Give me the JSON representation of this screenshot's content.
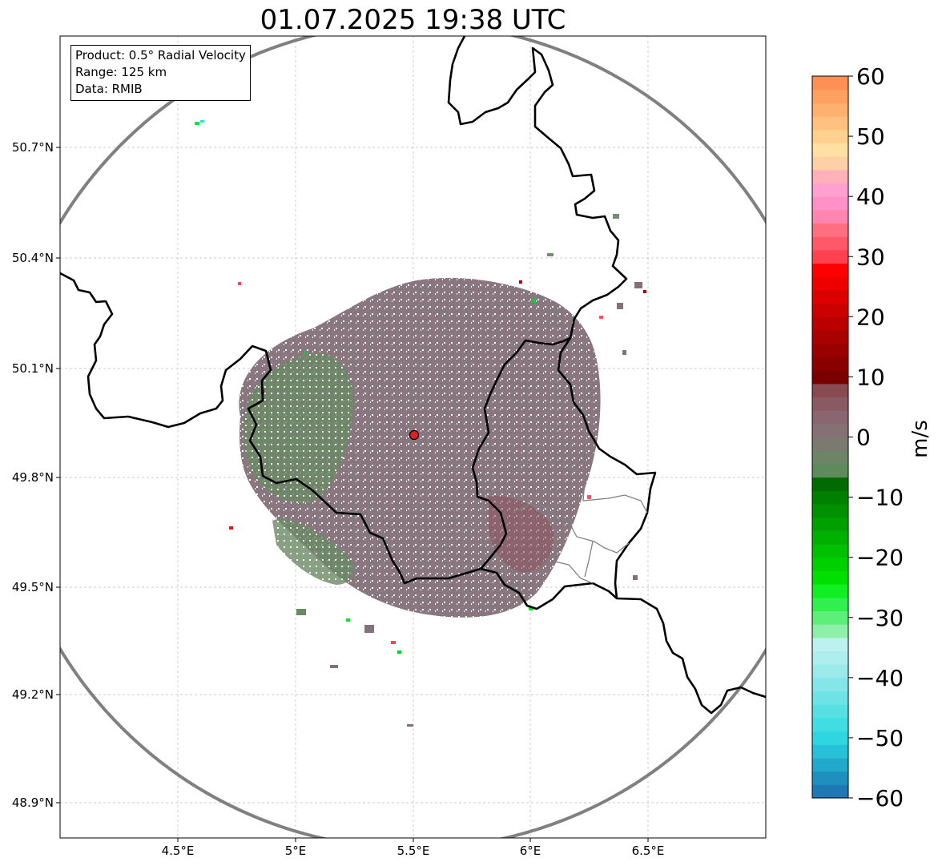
{
  "title": "01.07.2025 19:38 UTC",
  "info": {
    "product": "Product: 0.5° Radial Velocity",
    "range": "Range: 125 km",
    "data": "Data: RMIB"
  },
  "map": {
    "lon_ticks": [
      "4.5°E",
      "5°E",
      "5.5°E",
      "6°E",
      "6.5°E"
    ],
    "lat_ticks": [
      "50.7°N",
      "50.4°N",
      "50.1°N",
      "49.8°N",
      "49.5°N",
      "49.2°N",
      "48.9°N"
    ],
    "radar_site": {
      "lon": 5.5,
      "lat": 49.91
    },
    "range_ring_color": "#808080",
    "border_color": "#000000"
  },
  "colorbar": {
    "label": "m/s",
    "min": -60,
    "max": 60,
    "ticks": [
      "60",
      "50",
      "40",
      "30",
      "20",
      "10",
      "0",
      "−10",
      "−20",
      "−30",
      "−40",
      "−50",
      "−60"
    ],
    "colors": [
      "#1f77b4",
      "#1f8fc0",
      "#22a8cc",
      "#26c0d8",
      "#2dd6e0",
      "#40dde2",
      "#57e0e3",
      "#6ee3e6",
      "#84e6e8",
      "#9aeaea",
      "#aeeeef",
      "#bdf1f0",
      "#8ef0a8",
      "#5cf07a",
      "#30f050",
      "#10f020",
      "#00e000",
      "#00d000",
      "#00c000",
      "#00b000",
      "#00a000",
      "#009000",
      "#008000",
      "#006b00",
      "#5e8a5c",
      "#6b8566",
      "#7a7a70",
      "#857074",
      "#8a6670",
      "#8a5a62",
      "#8a4a52",
      "#7a0000",
      "#8a0000",
      "#9a0000",
      "#aa0000",
      "#bb0000",
      "#cc0000",
      "#dd0000",
      "#ee0000",
      "#ff0000",
      "#ff4050",
      "#ff5868",
      "#ff6f80",
      "#ff85b0",
      "#ff90c8",
      "#ffa0d0",
      "#ffb0b8",
      "#ffd0a8",
      "#ffe0a0",
      "#ffd090",
      "#ffc080",
      "#ffb070",
      "#ffa060",
      "#ff9055"
    ]
  }
}
